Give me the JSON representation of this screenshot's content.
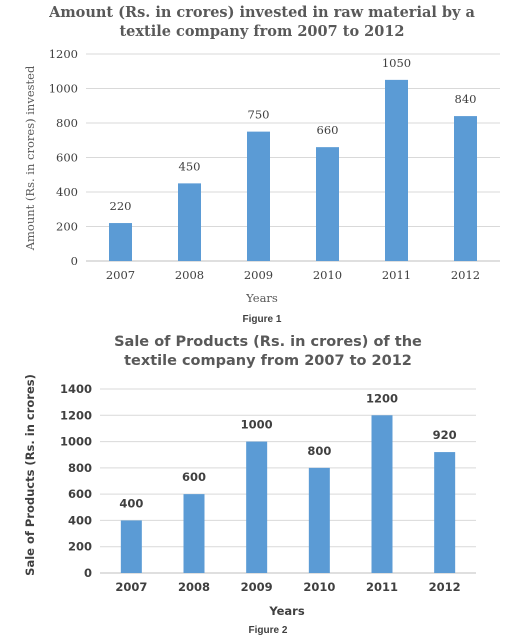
{
  "chart_data": [
    {
      "type": "bar",
      "title_lines": [
        "Amount (Rs. in crores) invested in raw material by a",
        "textile company from 2007 to 2012"
      ],
      "xlabel": "Years",
      "ylabel": "Amount (Rs. in crores) invested",
      "caption": "Figure 1",
      "categories": [
        "2007",
        "2008",
        "2009",
        "2010",
        "2011",
        "2012"
      ],
      "values": [
        220,
        450,
        750,
        660,
        1050,
        840
      ],
      "ylim": [
        0,
        1200
      ],
      "yticks": [
        0,
        200,
        400,
        600,
        800,
        1000,
        1200
      ],
      "grid": true,
      "bar_color": "#5B9BD5",
      "data_labels": true
    },
    {
      "type": "bar",
      "title_lines": [
        "Sale of Products (Rs. in crores) of the",
        "textile company from 2007 to 2012"
      ],
      "xlabel": "Years",
      "ylabel": "Sale of Products (Rs. in crores)",
      "caption": "Figure 2",
      "categories": [
        "2007",
        "2008",
        "2009",
        "2010",
        "2011",
        "2012"
      ],
      "values": [
        400,
        600,
        1000,
        800,
        1200,
        920
      ],
      "ylim": [
        0,
        1400
      ],
      "yticks": [
        0,
        200,
        400,
        600,
        800,
        1000,
        1200,
        1400
      ],
      "grid": true,
      "bar_color": "#5B9BD5",
      "data_labels": true
    }
  ]
}
